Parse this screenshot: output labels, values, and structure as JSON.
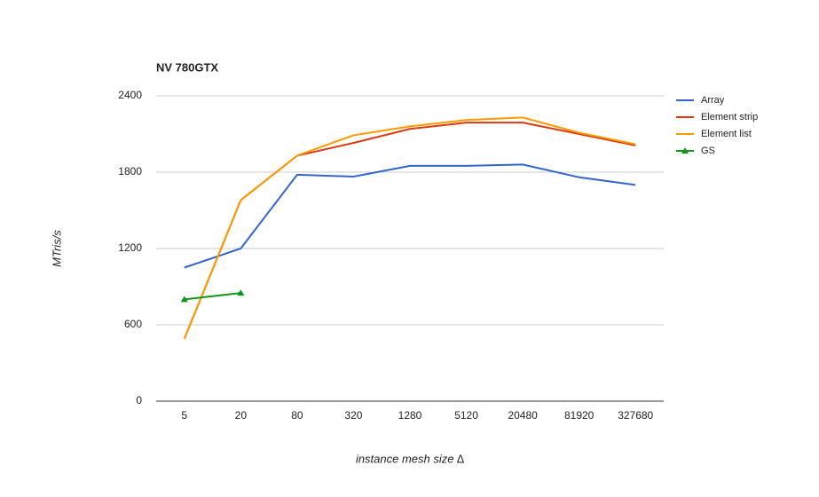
{
  "chart_data": {
    "type": "line",
    "title": "NV 780GTX",
    "x_label": "instance mesh size ∆",
    "y_label": "MTris/s",
    "categories": [
      "5",
      "20",
      "80",
      "320",
      "1280",
      "5120",
      "20480",
      "81920",
      "327680"
    ],
    "series": [
      {
        "name": "Array",
        "color": "#3366cc",
        "values": [
          1050,
          1200,
          1780,
          1765,
          1850,
          1850,
          1860,
          1760,
          1700
        ]
      },
      {
        "name": "Element strip",
        "color": "#dc3912",
        "values": [
          490,
          1580,
          1930,
          2030,
          2140,
          2190,
          2190,
          2100,
          2010
        ]
      },
      {
        "name": "Element list",
        "color": "#ff9900",
        "values": [
          490,
          1580,
          1930,
          2090,
          2160,
          2210,
          2230,
          2110,
          2020
        ]
      },
      {
        "name": "GS",
        "color": "#109618",
        "marker": "triangle",
        "values": [
          800,
          850,
          null,
          null,
          null,
          null,
          null,
          null,
          null
        ]
      }
    ],
    "ylim": [
      0,
      2400
    ],
    "yticks": [
      0,
      600,
      1200,
      1800,
      2400
    ],
    "grid": true,
    "legend": "right"
  }
}
